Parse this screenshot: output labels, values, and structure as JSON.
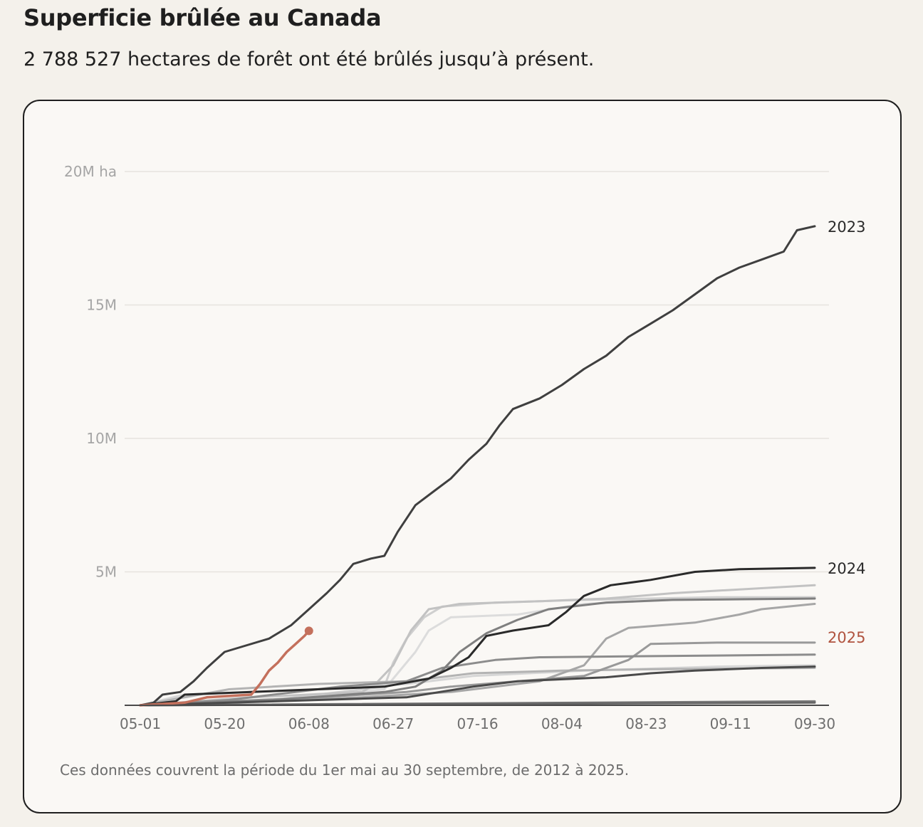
{
  "title": "Superficie brûlée au Canada",
  "subtitle": "2 788 527 hectares de forêt ont été brûlés jusqu’à présent.",
  "note": "Ces données couvrent la période du 1er mai au 30 septembre, de 2012 à 2025.",
  "colors": {
    "highlight": "#c4705c",
    "label_highlight": "#b0533f",
    "dark": "#3a3a3a"
  },
  "chart_data": {
    "type": "line",
    "x_axis": {
      "ticks": [
        "05-01",
        "05-20",
        "06-08",
        "06-27",
        "07-16",
        "08-04",
        "08-23",
        "09-11",
        "09-30"
      ],
      "range_days": [
        0,
        152
      ]
    },
    "y_axis": {
      "ticks": [
        {
          "value": 5000000,
          "label": "5M"
        },
        {
          "value": 10000000,
          "label": "10M"
        },
        {
          "value": 15000000,
          "label": "15M"
        },
        {
          "value": 20000000,
          "label": "20M ha"
        }
      ],
      "ylim": [
        0,
        20000000
      ]
    },
    "grid": true,
    "series": [
      {
        "name": "",
        "color": "#dcdcdc",
        "points": [
          [
            0,
            0
          ],
          [
            30,
            150000
          ],
          [
            55,
            600000
          ],
          [
            58,
            1200000
          ],
          [
            62,
            2000000
          ],
          [
            65,
            2800000
          ],
          [
            70,
            3300000
          ],
          [
            85,
            3400000
          ],
          [
            100,
            3800000
          ],
          [
            120,
            3950000
          ],
          [
            152,
            4000000
          ]
        ]
      },
      {
        "name": "",
        "color": "#cfcfcf",
        "points": [
          [
            0,
            0
          ],
          [
            30,
            200000
          ],
          [
            55,
            700000
          ],
          [
            57,
            1600000
          ],
          [
            60,
            2500000
          ],
          [
            64,
            3300000
          ],
          [
            68,
            3700000
          ],
          [
            80,
            3850000
          ],
          [
            100,
            3950000
          ],
          [
            130,
            4050000
          ],
          [
            152,
            4050000
          ]
        ]
      },
      {
        "name": "",
        "color": "#c2c2c2",
        "points": [
          [
            0,
            0
          ],
          [
            25,
            300000
          ],
          [
            50,
            500000
          ],
          [
            53,
            800000
          ],
          [
            57,
            1500000
          ],
          [
            61,
            2800000
          ],
          [
            65,
            3600000
          ],
          [
            72,
            3800000
          ],
          [
            90,
            3900000
          ],
          [
            105,
            4000000
          ],
          [
            120,
            4200000
          ],
          [
            152,
            4500000
          ]
        ]
      },
      {
        "name": "",
        "color": "#d6d6d6",
        "points": [
          [
            0,
            0
          ],
          [
            10,
            400000
          ],
          [
            40,
            600000
          ],
          [
            60,
            800000
          ],
          [
            75,
            1100000
          ],
          [
            100,
            1300000
          ],
          [
            130,
            1450000
          ],
          [
            152,
            1500000
          ]
        ]
      },
      {
        "name": "",
        "color": "#b3b3b3",
        "points": [
          [
            0,
            0
          ],
          [
            20,
            600000
          ],
          [
            40,
            800000
          ],
          [
            60,
            900000
          ],
          [
            75,
            1200000
          ],
          [
            95,
            1300000
          ],
          [
            115,
            1350000
          ],
          [
            152,
            1400000
          ]
        ]
      },
      {
        "name": "",
        "color": "#a6a6a6",
        "points": [
          [
            0,
            0
          ],
          [
            20,
            100000
          ],
          [
            50,
            300000
          ],
          [
            70,
            500000
          ],
          [
            90,
            900000
          ],
          [
            100,
            1500000
          ],
          [
            105,
            2500000
          ],
          [
            110,
            2900000
          ],
          [
            125,
            3100000
          ],
          [
            135,
            3400000
          ],
          [
            140,
            3600000
          ],
          [
            152,
            3800000
          ]
        ]
      },
      {
        "name": "",
        "color": "#999999",
        "points": [
          [
            0,
            0
          ],
          [
            40,
            300000
          ],
          [
            60,
            500000
          ],
          [
            70,
            700000
          ],
          [
            85,
            900000
          ],
          [
            100,
            1100000
          ],
          [
            110,
            1700000
          ],
          [
            115,
            2300000
          ],
          [
            130,
            2350000
          ],
          [
            152,
            2350000
          ]
        ]
      },
      {
        "name": "",
        "color": "#8c8c8c",
        "points": [
          [
            0,
            0
          ],
          [
            20,
            200000
          ],
          [
            45,
            700000
          ],
          [
            60,
            900000
          ],
          [
            68,
            1400000
          ],
          [
            80,
            1700000
          ],
          [
            90,
            1800000
          ],
          [
            120,
            1850000
          ],
          [
            152,
            1900000
          ]
        ]
      },
      {
        "name": "",
        "color": "#7f7f7f",
        "points": [
          [
            0,
            0
          ],
          [
            30,
            200000
          ],
          [
            55,
            500000
          ],
          [
            62,
            700000
          ],
          [
            68,
            1300000
          ],
          [
            72,
            2000000
          ],
          [
            78,
            2700000
          ],
          [
            85,
            3200000
          ],
          [
            92,
            3600000
          ],
          [
            105,
            3850000
          ],
          [
            120,
            3950000
          ],
          [
            152,
            4000000
          ]
        ]
      },
      {
        "name": "",
        "color": "#7a7a7a",
        "points": [
          [
            0,
            0
          ],
          [
            152,
            150000
          ]
        ]
      },
      {
        "name": "",
        "color": "#666666",
        "points": [
          [
            0,
            0
          ],
          [
            152,
            100000
          ]
        ]
      },
      {
        "name": "",
        "color": "#4a4a4a",
        "points": [
          [
            0,
            0
          ],
          [
            60,
            300000
          ],
          [
            75,
            700000
          ],
          [
            85,
            900000
          ],
          [
            105,
            1050000
          ],
          [
            115,
            1200000
          ],
          [
            125,
            1300000
          ],
          [
            140,
            1400000
          ],
          [
            152,
            1450000
          ]
        ]
      },
      {
        "name": "2024",
        "color": "#2a2a2a",
        "points": [
          [
            0,
            0
          ],
          [
            8,
            150000
          ],
          [
            10,
            400000
          ],
          [
            25,
            500000
          ],
          [
            40,
            600000
          ],
          [
            55,
            700000
          ],
          [
            65,
            1000000
          ],
          [
            70,
            1400000
          ],
          [
            74,
            1800000
          ],
          [
            78,
            2600000
          ],
          [
            84,
            2800000
          ],
          [
            92,
            3000000
          ],
          [
            96,
            3500000
          ],
          [
            100,
            4100000
          ],
          [
            106,
            4500000
          ],
          [
            115,
            4700000
          ],
          [
            125,
            5000000
          ],
          [
            135,
            5100000
          ],
          [
            152,
            5150000
          ]
        ]
      },
      {
        "name": "2023",
        "color": "#3f3f3f",
        "points": [
          [
            0,
            0
          ],
          [
            3,
            100000
          ],
          [
            5,
            400000
          ],
          [
            9,
            500000
          ],
          [
            12,
            900000
          ],
          [
            15,
            1400000
          ],
          [
            19,
            2000000
          ],
          [
            23,
            2200000
          ],
          [
            29,
            2500000
          ],
          [
            34,
            3000000
          ],
          [
            38,
            3600000
          ],
          [
            42,
            4200000
          ],
          [
            45,
            4700000
          ],
          [
            48,
            5300000
          ],
          [
            52,
            5500000
          ],
          [
            55,
            5600000
          ],
          [
            58,
            6500000
          ],
          [
            62,
            7500000
          ],
          [
            66,
            8000000
          ],
          [
            70,
            8500000
          ],
          [
            74,
            9200000
          ],
          [
            78,
            9800000
          ],
          [
            81,
            10500000
          ],
          [
            84,
            11100000
          ],
          [
            90,
            11500000
          ],
          [
            95,
            12000000
          ],
          [
            100,
            12600000
          ],
          [
            105,
            13100000
          ],
          [
            110,
            13800000
          ],
          [
            115,
            14300000
          ],
          [
            120,
            14800000
          ],
          [
            125,
            15400000
          ],
          [
            130,
            16000000
          ],
          [
            135,
            16400000
          ],
          [
            140,
            16700000
          ],
          [
            145,
            17000000
          ],
          [
            148,
            17800000
          ],
          [
            152,
            17950000
          ]
        ]
      },
      {
        "name": "2025",
        "color": "#c4705c",
        "points": [
          [
            0,
            0
          ],
          [
            10,
            100000
          ],
          [
            15,
            300000
          ],
          [
            20,
            350000
          ],
          [
            25,
            400000
          ],
          [
            27,
            800000
          ],
          [
            29,
            1300000
          ],
          [
            31,
            1600000
          ],
          [
            33,
            2000000
          ],
          [
            35,
            2300000
          ],
          [
            37,
            2600000
          ],
          [
            38,
            2788527
          ]
        ]
      }
    ]
  }
}
